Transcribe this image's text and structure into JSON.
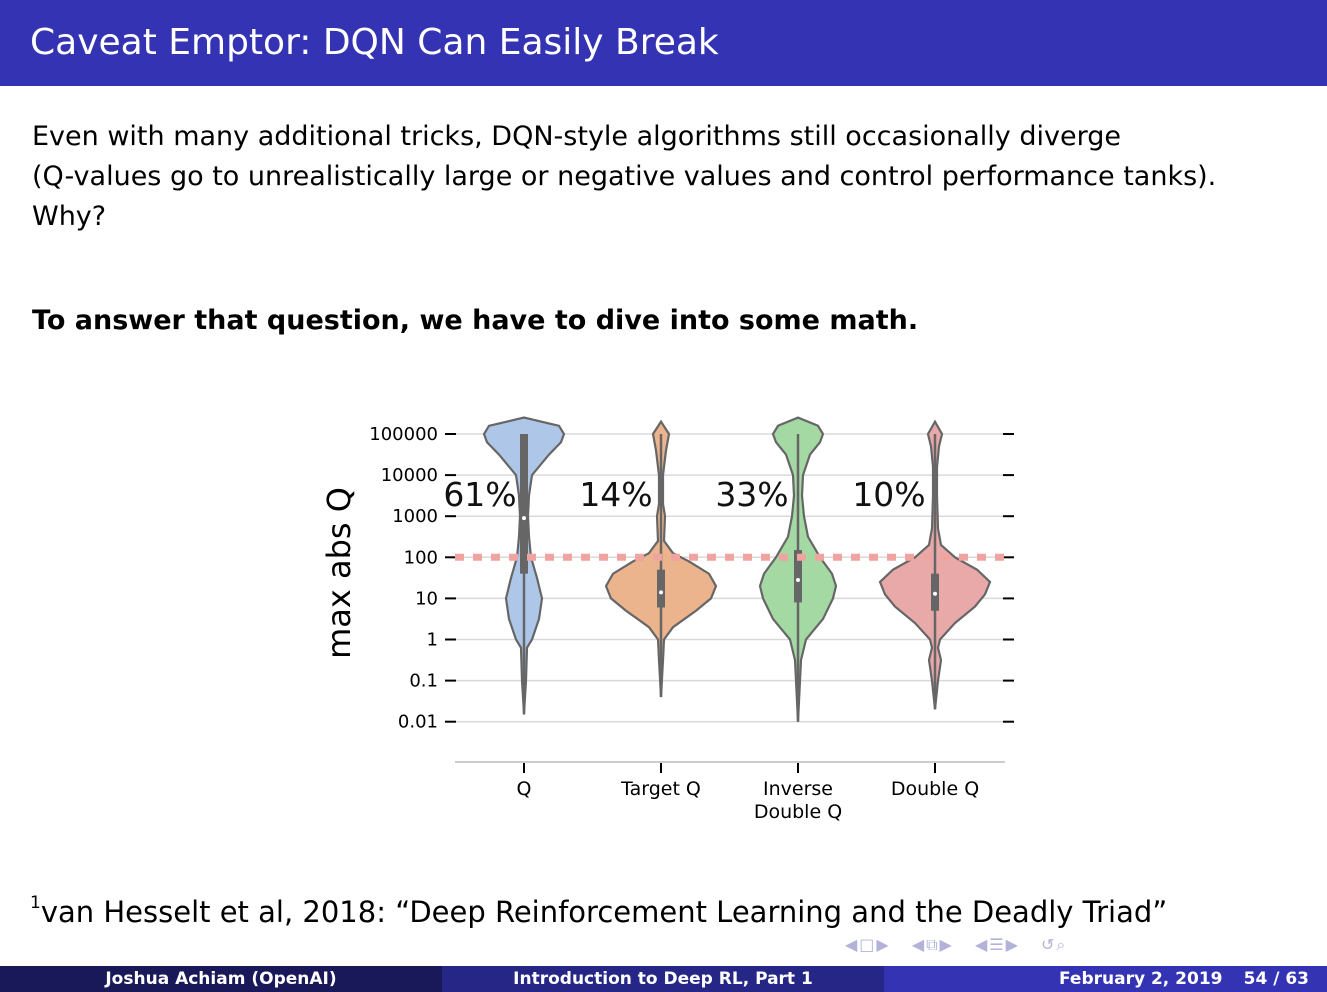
{
  "slide": {
    "title": "Caveat Emptor: DQN Can Easily Break",
    "paragraph_lines": [
      "Even with many additional tricks, DQN-style algorithms still occasionally diverge",
      "(Q-values go to unrealistically large or negative values and control performance tanks).",
      "Why?"
    ],
    "bold_text": "To answer that question, we have to dive into some math.",
    "footnote_mark": "1",
    "footnote_text": "van Hesselt et al, 2018:  “Deep Reinforcement Learning and the Deadly Triad”"
  },
  "footer": {
    "author": "Joshua Achiam  (OpenAI)",
    "talk": "Introduction to Deep RL, Part 1",
    "date": "February 2, 2019",
    "page": "54 / 63"
  },
  "chart_data": {
    "type": "violin",
    "ylabel": "max abs Q",
    "y_scale": "log",
    "y_ticks": [
      "100000",
      "10000",
      "1000",
      "100",
      "10",
      "1",
      "0.1",
      "0.01"
    ],
    "y_tick_values": [
      100000,
      10000,
      1000,
      100,
      10,
      1,
      0.1,
      0.01
    ],
    "categories": [
      "Q",
      "Target Q",
      "Inverse\nDouble Q",
      "Double Q"
    ],
    "percent_labels": [
      "61%",
      "14%",
      "33%",
      "10%"
    ],
    "threshold": 100,
    "colors": [
      "#aec7e8",
      "#ebb48c",
      "#a5d9a3",
      "#e9a9a9"
    ],
    "threshold_color": "#f0a4a0",
    "series": [
      {
        "median": 900,
        "q1": 40,
        "q3": 100000,
        "min": 0.015,
        "max": 200000
      },
      {
        "median": 14,
        "q1": 6,
        "q3": 50,
        "min": 0.04,
        "max": 100000
      },
      {
        "median": 28,
        "q1": 8,
        "q3": 150,
        "min": 0.01,
        "max": 100000
      },
      {
        "median": 13,
        "q1": 5,
        "q3": 40,
        "min": 0.02,
        "max": 100000
      }
    ],
    "grid": true
  },
  "nav_icons": [
    "nav-frame-icon",
    "nav-subsection-icon",
    "nav-section-icon",
    "nav-search-icon"
  ]
}
